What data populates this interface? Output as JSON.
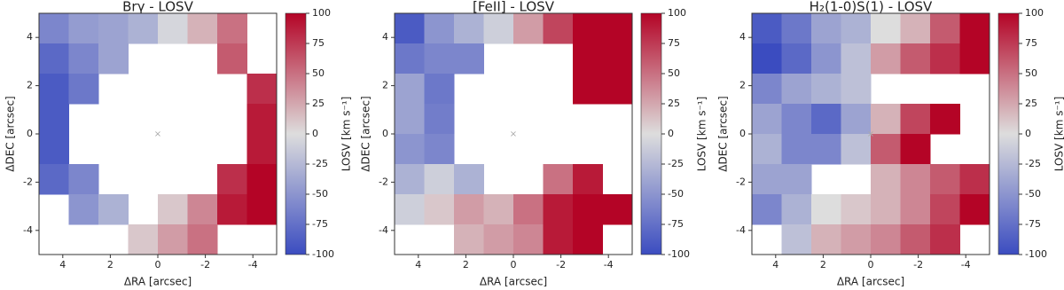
{
  "chart_data": [
    {
      "type": "heatmap",
      "title": "Brγ - LOSV",
      "xlabel": "ΔRA [arcsec]",
      "ylabel": "ΔDEC [arcsec]",
      "colorbar_label": "LOSV [km s⁻¹]",
      "colormap": "coolwarm",
      "xlim": [
        5,
        -5
      ],
      "ylim": [
        -5,
        5
      ],
      "xticks": [
        4,
        2,
        0,
        -2,
        -4
      ],
      "yticks": [
        -4,
        -2,
        0,
        2,
        4
      ],
      "clim": [
        -100,
        100
      ],
      "cticks": [
        -100,
        -75,
        -50,
        -25,
        0,
        25,
        50,
        75,
        100
      ],
      "z": [
        [
          -60,
          -45,
          -40,
          -30,
          -5,
          20,
          50,
          null
        ],
        [
          -80,
          -60,
          -40,
          null,
          null,
          null,
          60,
          null
        ],
        [
          -90,
          -70,
          null,
          null,
          null,
          null,
          null,
          80
        ],
        [
          -90,
          null,
          null,
          null,
          null,
          null,
          null,
          90
        ],
        [
          -90,
          null,
          null,
          null,
          null,
          null,
          null,
          90
        ],
        [
          -80,
          -60,
          null,
          null,
          null,
          null,
          80,
          100
        ],
        [
          null,
          -50,
          -30,
          null,
          10,
          40,
          90,
          100
        ],
        [
          null,
          null,
          null,
          10,
          30,
          50,
          null,
          null
        ]
      ]
    },
    {
      "type": "heatmap",
      "title": "[FeII] - LOSV",
      "xlabel": "ΔRA [arcsec]",
      "ylabel": "ΔDEC [arcsec]",
      "colorbar_label": "LOSV [km s⁻¹]",
      "colormap": "coolwarm",
      "xlim": [
        5,
        -5
      ],
      "ylim": [
        -5,
        5
      ],
      "xticks": [
        4,
        2,
        0,
        -2,
        -4
      ],
      "yticks": [
        -4,
        -2,
        0,
        2,
        4
      ],
      "clim": [
        -100,
        100
      ],
      "cticks": [
        -100,
        -75,
        -50,
        -25,
        0,
        25,
        50,
        75,
        100
      ],
      "z": [
        [
          -90,
          -50,
          -30,
          -10,
          30,
          70,
          100,
          100
        ],
        [
          -70,
          -60,
          -60,
          null,
          null,
          null,
          100,
          100
        ],
        [
          -40,
          -70,
          null,
          null,
          null,
          null,
          100,
          100
        ],
        [
          -40,
          -66,
          null,
          null,
          null,
          null,
          null,
          null
        ],
        [
          -50,
          -60,
          null,
          null,
          null,
          null,
          null,
          null
        ],
        [
          -30,
          -10,
          -30,
          null,
          null,
          50,
          90,
          null
        ],
        [
          -10,
          10,
          30,
          20,
          50,
          90,
          100,
          100
        ],
        [
          null,
          null,
          20,
          30,
          40,
          90,
          100,
          null
        ]
      ]
    },
    {
      "type": "heatmap",
      "title": "H₂(1-0)S(1) - LOSV",
      "xlabel": "ΔRA [arcsec]",
      "ylabel": "ΔDEC [arcsec]",
      "colorbar_label": "LOSV [km s⁻¹]",
      "colormap": "coolwarm",
      "xlim": [
        5,
        -5
      ],
      "ylim": [
        -5,
        5
      ],
      "xticks": [
        4,
        2,
        0,
        -2,
        -4
      ],
      "yticks": [
        -4,
        -2,
        0,
        2,
        4
      ],
      "clim": [
        -100,
        100
      ],
      "cticks": [
        -100,
        -75,
        -50,
        -25,
        0,
        25,
        50,
        75,
        100
      ],
      "z": [
        [
          -90,
          -70,
          -40,
          -30,
          0,
          20,
          60,
          100
        ],
        [
          -100,
          -80,
          -50,
          -20,
          30,
          60,
          80,
          100
        ],
        [
          -60,
          -40,
          -30,
          -20,
          null,
          null,
          null,
          null
        ],
        [
          -40,
          -60,
          -80,
          -40,
          20,
          70,
          100,
          null
        ],
        [
          -30,
          -60,
          -60,
          -20,
          60,
          100,
          null,
          null
        ],
        [
          -40,
          -40,
          null,
          null,
          20,
          40,
          60,
          80
        ],
        [
          -60,
          -30,
          0,
          10,
          20,
          40,
          70,
          100
        ],
        [
          null,
          -20,
          20,
          30,
          40,
          60,
          80,
          null
        ]
      ]
    }
  ]
}
